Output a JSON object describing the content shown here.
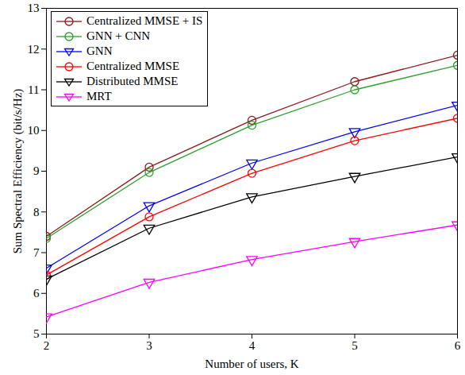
{
  "chart_data": {
    "type": "line",
    "x_label": "Number of users, K",
    "y_label": "Sum Spectral Efficiency (bit/s/Hz)",
    "x": [
      2,
      3,
      4,
      5,
      6
    ],
    "xlim": [
      2,
      6
    ],
    "xticks": [
      2,
      3,
      4,
      5,
      6
    ],
    "ylim": [
      5,
      13
    ],
    "yticks": [
      5,
      6,
      7,
      8,
      9,
      10,
      11,
      12,
      13
    ],
    "grid": false,
    "legend": "top-left",
    "series": [
      {
        "name": "Centralized MMSE + IS",
        "color": "#8b1a1a",
        "marker": "circle",
        "values": [
          7.4,
          9.1,
          10.25,
          11.2,
          11.85
        ]
      },
      {
        "name": "GNN + CNN",
        "color": "#2ca02c",
        "marker": "circle",
        "values": [
          7.35,
          8.97,
          10.13,
          11.0,
          11.6
        ]
      },
      {
        "name": "GNN",
        "color": "#0000ff",
        "marker": "triangle-down",
        "values": [
          6.62,
          8.15,
          9.2,
          9.97,
          10.62
        ]
      },
      {
        "name": "Centralized MMSE",
        "color": "#ff0000",
        "marker": "circle",
        "values": [
          6.45,
          7.88,
          8.95,
          9.75,
          10.3
        ]
      },
      {
        "name": "Distributed MMSE",
        "color": "#000000",
        "marker": "triangle-down",
        "values": [
          6.35,
          7.6,
          8.37,
          8.87,
          9.35
        ]
      },
      {
        "name": "MRT",
        "color": "#ff00ff",
        "marker": "triangle-down",
        "values": [
          5.42,
          6.27,
          6.83,
          7.27,
          7.68
        ]
      }
    ]
  }
}
